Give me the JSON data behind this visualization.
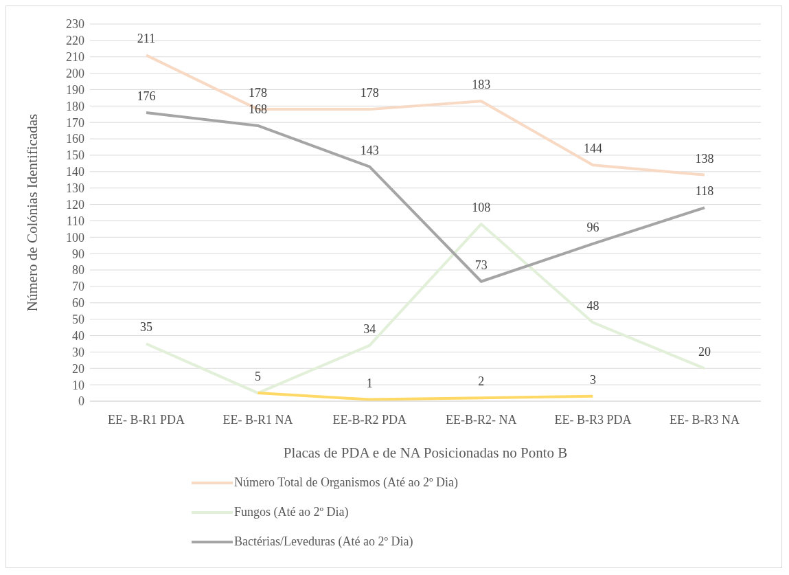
{
  "chart_data": {
    "type": "line",
    "xlabel": "Placas de PDA e de NA Posicionadas no Ponto B",
    "ylabel": "Número de Colónias Identificadas",
    "categories": [
      "EE- B-R1 PDA",
      "EE- B-R1 NA",
      "EE-B-R2 PDA",
      "EE-B-R2- NA",
      "EE- B-R3 PDA",
      "EE- B-R3 NA"
    ],
    "series": [
      {
        "name": "Número Total de Organismos (Até ao 2º Dia)",
        "color": "#f8d9c4",
        "values": [
          211,
          178,
          178,
          183,
          144,
          138
        ]
      },
      {
        "name": "Fungos (Até ao 2º Dia)",
        "color": "#e2efd9",
        "values": [
          35,
          5,
          34,
          108,
          48,
          20
        ]
      },
      {
        "name": "Bactérias/Leveduras (Até ao 2º Dia)",
        "color": "#a5a5a5",
        "values": [
          176,
          168,
          143,
          73,
          96,
          118
        ]
      },
      {
        "color": "#ffd966",
        "values": [
          null,
          5,
          1,
          2,
          3,
          null
        ],
        "value_labels": [
          null,
          null,
          "1",
          "2",
          "3",
          null
        ]
      }
    ],
    "ylim": [
      0,
      230
    ],
    "yticks": [
      0,
      10,
      20,
      30,
      40,
      50,
      60,
      70,
      80,
      90,
      100,
      110,
      120,
      130,
      140,
      150,
      160,
      170,
      180,
      190,
      200,
      210,
      220,
      230
    ],
    "grid": "y",
    "legend": "bottom",
    "data_labels": true,
    "marker": "none",
    "line_style": "solid"
  }
}
